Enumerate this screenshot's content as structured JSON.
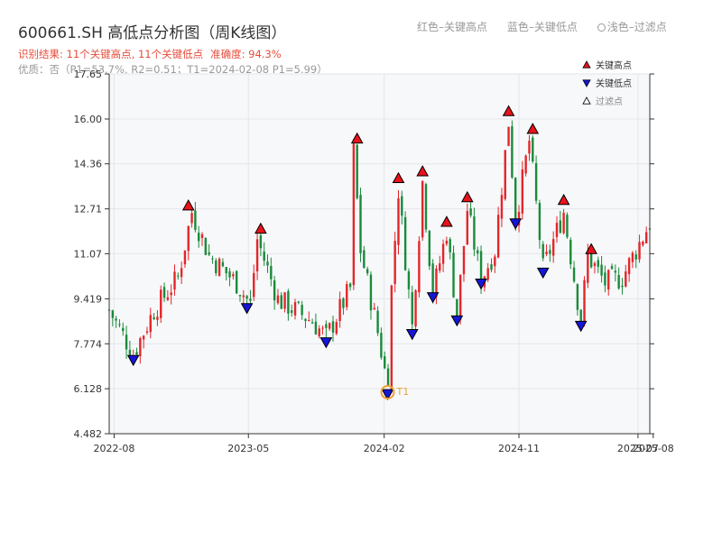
{
  "title": "600661.SH 高低点分析图（周K线图）",
  "header_legend": {
    "red": "红色–关键高点",
    "blue": "蓝色–关键低点",
    "light": "浅色–过滤点"
  },
  "result": {
    "summary": "识别结果: 11个关键高点, 11个关键低点",
    "accuracy": "准确度: 94.3%"
  },
  "quality": "优质：否（P1=53.7%, R2=0.51；T1=2024-02-08 P1=5.99）",
  "colors": {
    "up": "#e3262b",
    "down": "#1a8a3a",
    "high_marker": "#e8131b",
    "low_marker": "#1616d8",
    "t1_marker": "#f0a030",
    "plot_bg": "#f7f8fa",
    "grid": "#e3e6ea"
  },
  "chart_data": {
    "type": "candlestick",
    "title": "600661.SH 高低点分析图（周K线图）",
    "ylim": [
      4.482,
      17.65
    ],
    "xlim": [
      "2022-07-22",
      "2025-07-25"
    ],
    "y_ticks": [
      "4.482",
      "6.128",
      "7.774",
      "9.419",
      "11.07",
      "12.71",
      "14.36",
      "16.00",
      "17.65"
    ],
    "x_ticks": [
      {
        "label": "2022-08",
        "date": "2022-08-01"
      },
      {
        "label": "2023-05",
        "date": "2023-05-01"
      },
      {
        "label": "2024-02",
        "date": "2024-02-01"
      },
      {
        "label": "2024-11",
        "date": "2024-11-01"
      },
      {
        "label": "2025-07",
        "date": "2025-07-01"
      },
      {
        "label": "2025-08",
        "date": "2025-08-01"
      }
    ],
    "price_waypoints": [
      [
        "2022-07-22",
        9.0
      ],
      [
        "2022-09-09",
        7.4
      ],
      [
        "2022-10-21",
        9.0
      ],
      [
        "2022-12-09",
        10.2
      ],
      [
        "2023-01-06",
        12.6
      ],
      [
        "2023-02-10",
        11.0
      ],
      [
        "2023-04-07",
        10.0
      ],
      [
        "2023-05-05",
        9.2
      ],
      [
        "2023-05-19",
        11.6
      ],
      [
        "2023-06-30",
        9.4
      ],
      [
        "2023-09-08",
        8.6
      ],
      [
        "2023-10-06",
        8.0
      ],
      [
        "2023-11-24",
        9.8
      ],
      [
        "2023-12-01",
        14.8
      ],
      [
        "2023-12-15",
        11.2
      ],
      [
        "2024-01-19",
        8.2
      ],
      [
        "2024-02-08",
        6.2
      ],
      [
        "2024-02-16",
        9.8
      ],
      [
        "2024-03-01",
        13.4
      ],
      [
        "2024-03-29",
        8.4
      ],
      [
        "2024-04-19",
        13.7
      ],
      [
        "2024-05-10",
        9.6
      ],
      [
        "2024-06-07",
        11.9
      ],
      [
        "2024-06-28",
        8.8
      ],
      [
        "2024-07-19",
        12.7
      ],
      [
        "2024-08-16",
        10.1
      ],
      [
        "2024-09-13",
        11.2
      ],
      [
        "2024-10-11",
        15.9
      ],
      [
        "2024-10-25",
        12.3
      ],
      [
        "2024-11-22",
        15.2
      ],
      [
        "2024-12-20",
        10.5
      ],
      [
        "2025-01-31",
        12.6
      ],
      [
        "2025-03-07",
        8.6
      ],
      [
        "2025-03-21",
        11.0
      ],
      [
        "2025-04-25",
        10.0
      ],
      [
        "2025-05-30",
        10.2
      ],
      [
        "2025-07-25",
        12.2
      ]
    ],
    "key_highs": [
      {
        "date": "2022-12-30",
        "value": 12.6
      },
      {
        "date": "2023-05-26",
        "value": 11.75
      },
      {
        "date": "2023-12-08",
        "value": 15.05
      },
      {
        "date": "2024-03-01",
        "value": 13.6
      },
      {
        "date": "2024-04-19",
        "value": 13.85
      },
      {
        "date": "2024-06-07",
        "value": 12.0
      },
      {
        "date": "2024-07-19",
        "value": 12.9
      },
      {
        "date": "2024-10-11",
        "value": 16.05
      },
      {
        "date": "2024-11-29",
        "value": 15.4
      },
      {
        "date": "2025-01-31",
        "value": 12.8
      },
      {
        "date": "2025-03-28",
        "value": 11.0
      }
    ],
    "key_lows": [
      {
        "date": "2022-09-09",
        "value": 7.35
      },
      {
        "date": "2023-04-28",
        "value": 9.25
      },
      {
        "date": "2023-10-06",
        "value": 8.0
      },
      {
        "date": "2024-02-08",
        "value": 6.1
      },
      {
        "date": "2024-03-29",
        "value": 8.3
      },
      {
        "date": "2024-05-10",
        "value": 9.65
      },
      {
        "date": "2024-06-28",
        "value": 8.8
      },
      {
        "date": "2024-08-16",
        "value": 10.15
      },
      {
        "date": "2024-10-25",
        "value": 12.35
      },
      {
        "date": "2024-12-20",
        "value": 10.55
      },
      {
        "date": "2025-03-07",
        "value": 8.6
      }
    ],
    "t1": {
      "label": "T1",
      "date": "2024-02-08",
      "value": 6.1
    },
    "legend": [
      {
        "label": "关键高点",
        "marker": "high"
      },
      {
        "label": "关键低点",
        "marker": "low"
      },
      {
        "label": "过滤点",
        "marker": "filtered"
      }
    ],
    "legend_position": "top-right",
    "grid": true
  }
}
